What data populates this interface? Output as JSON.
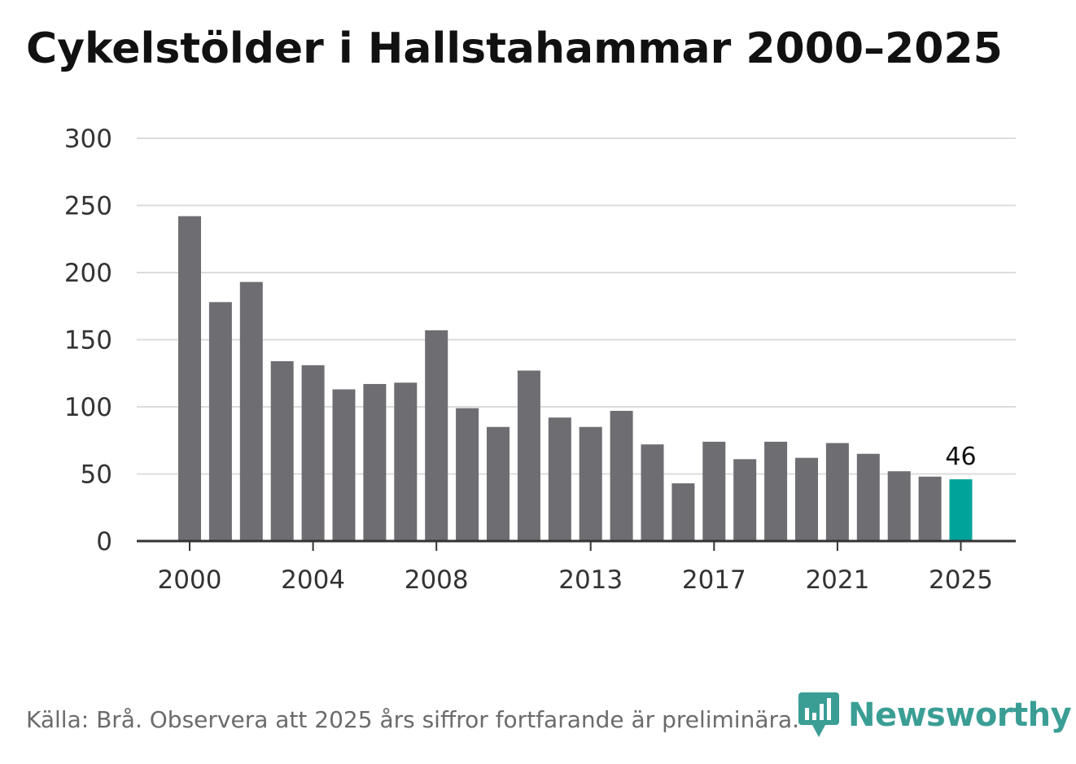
{
  "chart_data": {
    "type": "bar",
    "title": "Cykelstölder i Hallstahammar 2000–2025",
    "categories": [
      "2000",
      "2001",
      "2002",
      "2003",
      "2004",
      "2005",
      "2006",
      "2007",
      "2008",
      "2009",
      "2010",
      "2011",
      "2012",
      "2013",
      "2014",
      "2015",
      "2016",
      "2017",
      "2018",
      "2019",
      "2020",
      "2021",
      "2022",
      "2023",
      "2024",
      "2025"
    ],
    "values": [
      242,
      178,
      193,
      134,
      131,
      113,
      117,
      118,
      157,
      99,
      85,
      127,
      92,
      85,
      97,
      72,
      43,
      74,
      61,
      74,
      62,
      73,
      65,
      52,
      48,
      46
    ],
    "xlabel": "",
    "ylabel": "",
    "ylim": [
      0,
      300
    ],
    "yticks": [
      0,
      50,
      100,
      150,
      200,
      250,
      300
    ],
    "xtick_labels": [
      "2000",
      "2004",
      "2008",
      "2013",
      "2017",
      "2021",
      "2025"
    ],
    "grid": true,
    "bar_color": "#6e6d72",
    "highlight_color": "#00a39a",
    "highlight_category": "2025",
    "annotation": {
      "category": "2025",
      "text": "46"
    }
  },
  "footer": {
    "source": "Källa: Brå. Observera att 2025 års siffror fortfarande är preliminära."
  },
  "logo": {
    "text": "Newsworthy",
    "color": "#3a9e95",
    "icon": "newsworthy-logo-icon"
  }
}
